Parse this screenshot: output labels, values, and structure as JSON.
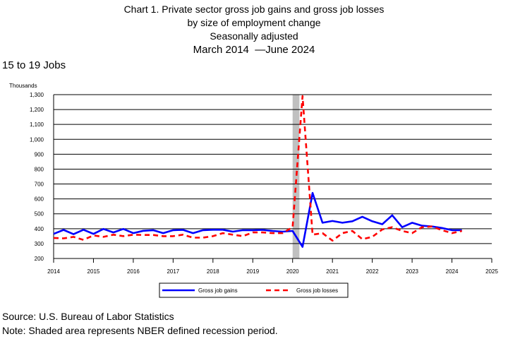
{
  "header": {
    "title_line1": "Chart 1. Private sector gross job gains and gross job losses",
    "title_line2": "by size of employment change",
    "title_line3": "Seasonally adjusted",
    "date_start": "March 2014",
    "date_end": "June 2024"
  },
  "subtitle": "15 to 19 Jobs",
  "footer": {
    "source": "Source: U.S. Bureau of Labor Statistics",
    "note": "Note: Shaded area represents NBER defined recession period."
  },
  "colors": {
    "gains": "#0000ff",
    "losses": "#ff0000",
    "recession": "#c0c0c0",
    "grid": "#000000"
  },
  "chart_data": {
    "type": "line",
    "ylabel": "Thousands",
    "ylim": [
      200,
      1300
    ],
    "yticks": [
      200,
      300,
      400,
      500,
      600,
      700,
      800,
      900,
      1000,
      1100,
      1200,
      1300
    ],
    "ytick_labels": [
      "200",
      "300",
      "400",
      "500",
      "600",
      "700",
      "800",
      "900",
      "1,000",
      "1,100",
      "1,200",
      "1,300"
    ],
    "xlim": [
      2014,
      2025
    ],
    "xticks": [
      2014,
      2015,
      2016,
      2017,
      2018,
      2019,
      2020,
      2021,
      2022,
      2023,
      2024,
      2025
    ],
    "grid": "horizontal",
    "legend_position": "bottom",
    "recession": [
      2020.0,
      2020.17
    ],
    "series": [
      {
        "name": "Gross job gains",
        "style": "solid",
        "x": [
          2014.0,
          2014.25,
          2014.5,
          2014.75,
          2015.0,
          2015.25,
          2015.5,
          2015.75,
          2016.0,
          2016.25,
          2016.5,
          2016.75,
          2017.0,
          2017.25,
          2017.5,
          2017.75,
          2018.0,
          2018.25,
          2018.5,
          2018.75,
          2019.0,
          2019.25,
          2019.5,
          2019.75,
          2020.0,
          2020.25,
          2020.5,
          2020.75,
          2021.0,
          2021.25,
          2021.5,
          2021.75,
          2022.0,
          2022.25,
          2022.5,
          2022.75,
          2023.0,
          2023.25,
          2023.5,
          2023.75,
          2024.0,
          2024.25
        ],
        "values": [
          365,
          392,
          363,
          393,
          365,
          398,
          375,
          398,
          370,
          386,
          390,
          370,
          390,
          392,
          370,
          390,
          393,
          393,
          380,
          390,
          390,
          392,
          385,
          380,
          385,
          278,
          640,
          440,
          452,
          440,
          450,
          480,
          450,
          430,
          490,
          410,
          440,
          420,
          415,
          405,
          390,
          390
        ]
      },
      {
        "name": "Gross job losses",
        "style": "dashed",
        "x": [
          2014.0,
          2014.25,
          2014.5,
          2014.75,
          2015.0,
          2015.25,
          2015.5,
          2015.75,
          2016.0,
          2016.25,
          2016.5,
          2016.75,
          2017.0,
          2017.25,
          2017.5,
          2017.75,
          2018.0,
          2018.25,
          2018.5,
          2018.75,
          2019.0,
          2019.25,
          2019.5,
          2019.75,
          2020.0,
          2020.25,
          2020.5,
          2020.75,
          2021.0,
          2021.25,
          2021.5,
          2021.75,
          2022.0,
          2022.25,
          2022.5,
          2022.75,
          2023.0,
          2023.25,
          2023.5,
          2023.75,
          2024.0,
          2024.25
        ],
        "values": [
          338,
          335,
          345,
          325,
          355,
          345,
          360,
          350,
          360,
          358,
          358,
          350,
          350,
          360,
          340,
          340,
          350,
          370,
          360,
          350,
          375,
          375,
          370,
          370,
          410,
          1290,
          360,
          370,
          320,
          370,
          385,
          330,
          345,
          395,
          410,
          385,
          370,
          410,
          415,
          390,
          370,
          385
        ]
      }
    ]
  }
}
